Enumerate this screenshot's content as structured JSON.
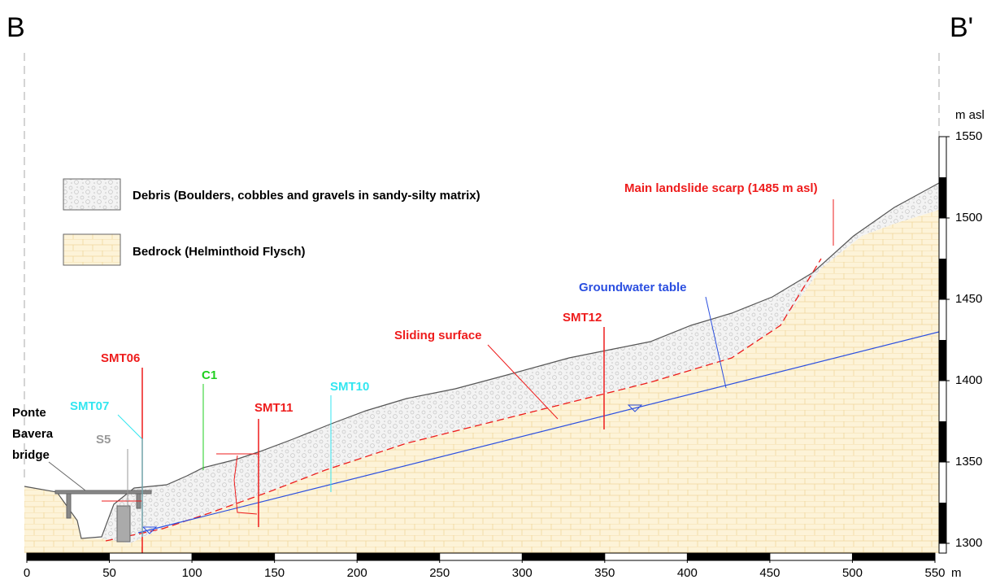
{
  "section": {
    "start": "B",
    "end": "B'"
  },
  "legend": [
    {
      "label": "Debris (Boulders, cobbles and gravels in sandy-silty matrix)"
    },
    {
      "label": "Bedrock (Helminthoid Flysch)"
    }
  ],
  "labels": {
    "scarp": "Main landslide scarp (1485 m asl)",
    "groundwater": "Groundwater table",
    "sliding": "Sliding surface",
    "bridge": [
      "Ponte",
      "Bavera",
      "bridge"
    ]
  },
  "boreholes": [
    {
      "name": "SMT06",
      "color": "#ee1c1c"
    },
    {
      "name": "SMT07",
      "color": "#33e6f0"
    },
    {
      "name": "S5",
      "color": "#999999"
    },
    {
      "name": "C1",
      "color": "#1fcf1f"
    },
    {
      "name": "SMT11",
      "color": "#ee1c1c"
    },
    {
      "name": "SMT10",
      "color": "#33e6f0"
    },
    {
      "name": "SMT12",
      "color": "#ee1c1c"
    }
  ],
  "x_axis": {
    "unit": "m",
    "ticks": [
      0,
      50,
      100,
      150,
      200,
      250,
      300,
      350,
      400,
      450,
      500,
      550
    ]
  },
  "y_axis": {
    "unit": "m asl",
    "ticks": [
      1300,
      1350,
      1400,
      1450,
      1500,
      1550
    ]
  }
}
